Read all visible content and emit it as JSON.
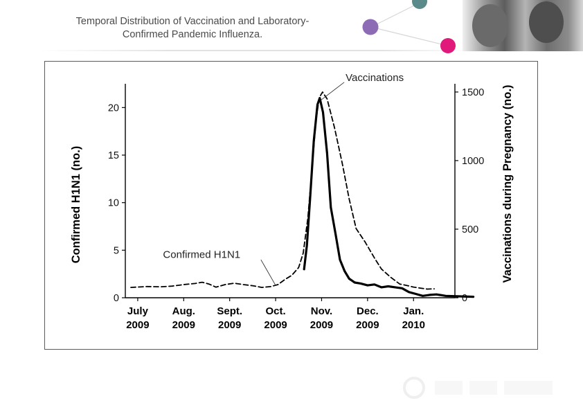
{
  "slide": {
    "title_line1": "Temporal Distribution of Vaccination and Laboratory-",
    "title_line2": "Confirmed Pandemic Influenza."
  },
  "colors": {
    "dot_teal": "#5b8a8b",
    "dot_purple": "#8e6bb5",
    "dot_magenta": "#e0197a",
    "axis": "#000000"
  },
  "chart_data": {
    "type": "line",
    "title": "Temporal Distribution of Vaccination and Laboratory-Confirmed Pandemic Influenza.",
    "xlabel": "",
    "x_ticks": [
      {
        "month": "July",
        "year": "2009",
        "t": 0
      },
      {
        "month": "Aug.",
        "year": "2009",
        "t": 1
      },
      {
        "month": "Sept.",
        "year": "2009",
        "t": 2
      },
      {
        "month": "Oct.",
        "year": "2009",
        "t": 3
      },
      {
        "month": "Nov.",
        "year": "2009",
        "t": 4
      },
      {
        "month": "Dec.",
        "year": "2009",
        "t": 5
      },
      {
        "month": "Jan.",
        "year": "2010",
        "t": 6
      }
    ],
    "xlim": [
      -0.3,
      6.9
    ],
    "y_left": {
      "label": "Confirmed H1N1 (no.)",
      "lim": [
        0,
        22.5
      ],
      "ticks": [
        {
          "v": 0,
          "label": "0"
        },
        {
          "v": 5,
          "label": "5"
        },
        {
          "v": 10,
          "label": "10"
        },
        {
          "v": 15,
          "label": "15"
        },
        {
          "v": 20,
          "label": "20"
        }
      ]
    },
    "y_right": {
      "label": "Vaccinations during Pregnancy (no.)",
      "lim": [
        0,
        1560
      ],
      "ticks": [
        {
          "v": 0,
          "label": "0"
        },
        {
          "v": 500,
          "label": "500"
        },
        {
          "v": 1000,
          "label": "1000"
        },
        {
          "v": 1500,
          "label": "1500"
        }
      ]
    },
    "series": [
      {
        "name": "Vaccinations",
        "axis": "right",
        "style": "dashed",
        "points": [
          [
            -0.15,
            75
          ],
          [
            0.2,
            82
          ],
          [
            0.5,
            80
          ],
          [
            0.75,
            85
          ],
          [
            1.0,
            96
          ],
          [
            1.25,
            104
          ],
          [
            1.4,
            113
          ],
          [
            1.55,
            100
          ],
          [
            1.7,
            77
          ],
          [
            1.9,
            96
          ],
          [
            2.1,
            106
          ],
          [
            2.3,
            96
          ],
          [
            2.5,
            88
          ],
          [
            2.7,
            75
          ],
          [
            2.9,
            82
          ],
          [
            3.05,
            96
          ],
          [
            3.2,
            133
          ],
          [
            3.35,
            163
          ],
          [
            3.5,
            220
          ],
          [
            3.6,
            325
          ],
          [
            3.7,
            580
          ],
          [
            3.8,
            975
          ],
          [
            3.88,
            1300
          ],
          [
            3.95,
            1460
          ],
          [
            4.02,
            1500
          ],
          [
            4.12,
            1450
          ],
          [
            4.28,
            1240
          ],
          [
            4.45,
            980
          ],
          [
            4.6,
            720
          ],
          [
            4.75,
            505
          ],
          [
            4.95,
            405
          ],
          [
            5.15,
            290
          ],
          [
            5.3,
            210
          ],
          [
            5.5,
            150
          ],
          [
            5.7,
            100
          ],
          [
            5.85,
            90
          ],
          [
            6.0,
            78
          ],
          [
            6.15,
            70
          ],
          [
            6.3,
            63
          ],
          [
            6.45,
            65
          ]
        ]
      },
      {
        "name": "Confirmed H1N1",
        "axis": "left",
        "style": "solid",
        "points": [
          [
            3.62,
            3.0
          ],
          [
            3.68,
            5.5
          ],
          [
            3.75,
            10.5
          ],
          [
            3.83,
            16.5
          ],
          [
            3.91,
            20.3
          ],
          [
            3.96,
            21.0
          ],
          [
            4.03,
            19.5
          ],
          [
            4.12,
            15.2
          ],
          [
            4.2,
            9.5
          ],
          [
            4.3,
            6.8
          ],
          [
            4.4,
            4.0
          ],
          [
            4.5,
            2.8
          ],
          [
            4.6,
            2.0
          ],
          [
            4.72,
            1.6
          ],
          [
            4.85,
            1.5
          ],
          [
            5.0,
            1.3
          ],
          [
            5.15,
            1.4
          ],
          [
            5.3,
            1.1
          ],
          [
            5.45,
            1.2
          ],
          [
            5.6,
            1.1
          ],
          [
            5.75,
            1.0
          ],
          [
            5.9,
            0.6
          ],
          [
            6.05,
            0.4
          ],
          [
            6.2,
            0.2
          ],
          [
            6.35,
            0.3
          ],
          [
            6.5,
            0.35
          ],
          [
            6.7,
            0.2
          ],
          [
            6.95,
            0.15
          ],
          [
            7.3,
            0.1
          ]
        ]
      }
    ],
    "annotations": [
      {
        "text": "Vaccinations",
        "series": "Vaccinations"
      },
      {
        "text": "Confirmed H1N1",
        "series": "Confirmed H1N1"
      }
    ]
  }
}
